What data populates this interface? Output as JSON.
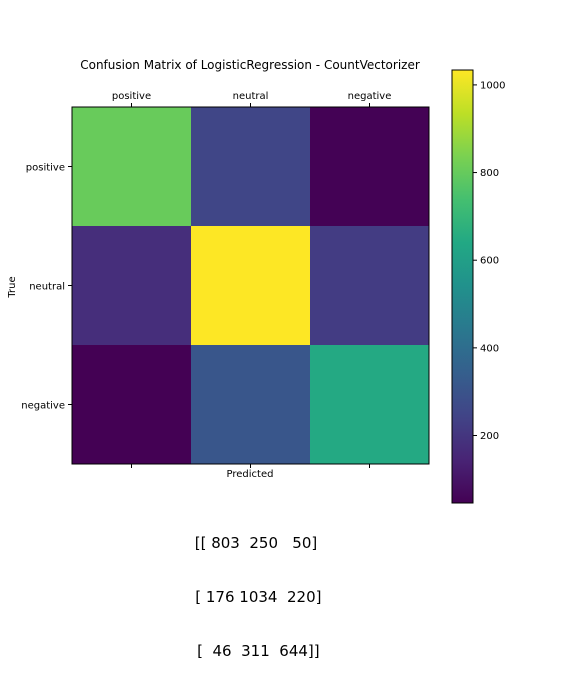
{
  "chart_data": {
    "type": "heatmap",
    "title": "Confusion Matrix of LogisticRegression - CountVectorizer",
    "x_categories": [
      "positive",
      "neutral",
      "negative"
    ],
    "y_categories": [
      "positive",
      "neutral",
      "negative"
    ],
    "xlabel": "Predicted",
    "ylabel": "True",
    "matrix": [
      [
        803,
        250,
        50
      ],
      [
        176,
        1034,
        220
      ],
      [
        46,
        311,
        644
      ]
    ],
    "colormap": "viridis",
    "color_range": [
      46,
      1034
    ],
    "colorbar_ticks": [
      200,
      400,
      600,
      800,
      1000
    ],
    "x_ticks_position": "top",
    "grid": false
  },
  "matrix_text_lines": [
    "[[ 803  250   50]",
    " [ 176 1034  220]",
    " [  46  311  644]]"
  ]
}
